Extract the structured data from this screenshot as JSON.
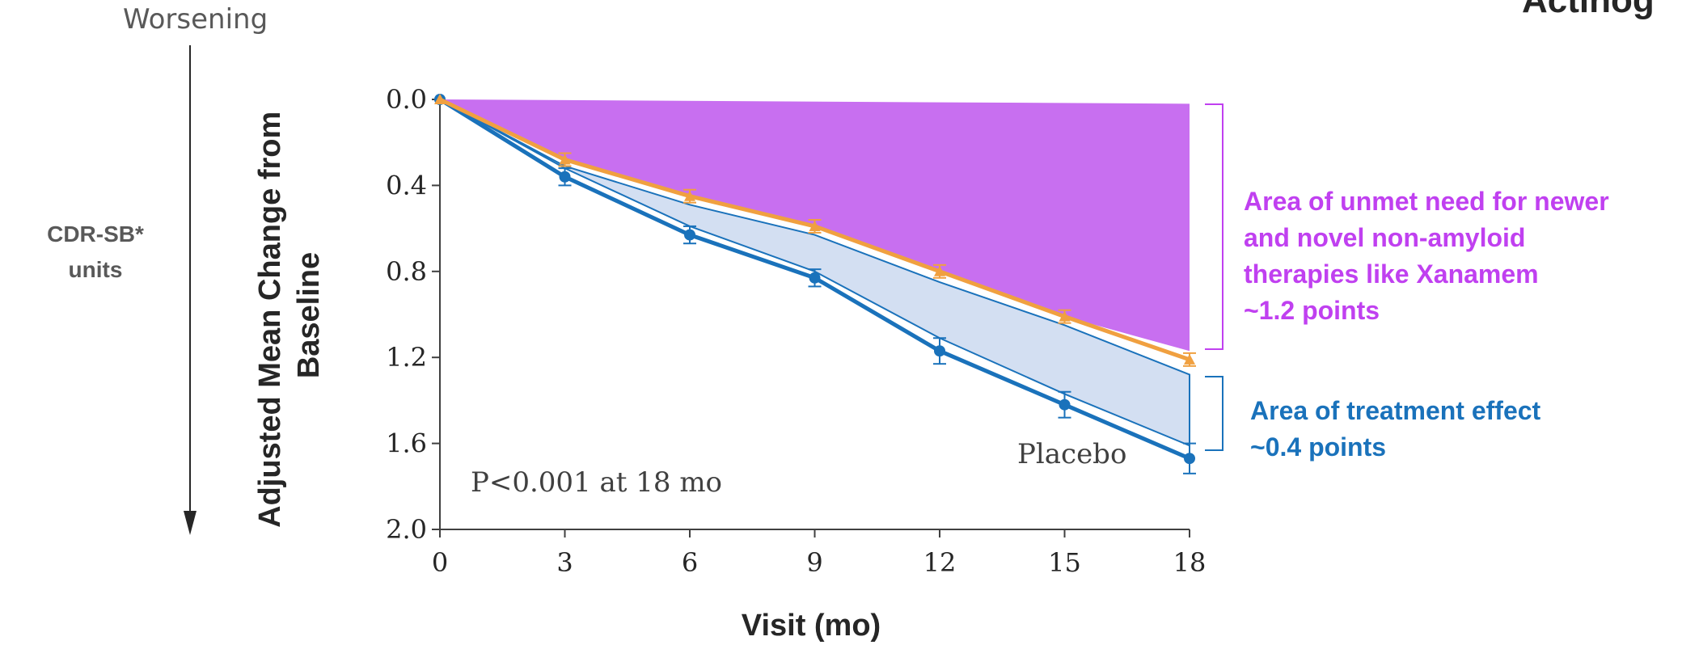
{
  "corner_text": "Actinog",
  "worsening_label": "Worsening",
  "measure_label": [
    "CDR-SB*",
    "units"
  ],
  "unmet_need_annotation": {
    "lines": [
      "Area of unmet need for newer",
      "and novel non-amyloid",
      "therapies like Xanamem",
      "~1.2 points"
    ],
    "color": "#c040f0"
  },
  "treatment_effect_annotation": {
    "lines": [
      "Area of treatment effect",
      "~0.4 points"
    ],
    "color": "#1a72bb"
  },
  "chart_data": {
    "type": "line",
    "xlabel": "Visit (mo)",
    "ylabel": "Adjusted Mean Change from Baseline",
    "x": [
      0,
      3,
      6,
      9,
      12,
      15,
      18
    ],
    "xticks": [
      "0",
      "3",
      "6",
      "9",
      "12",
      "15",
      "18"
    ],
    "yticks": [
      "0.0",
      "0.4",
      "0.8",
      "1.2",
      "1.6",
      "2.0"
    ],
    "ylim": [
      0,
      2.0
    ],
    "y_inverted": true,
    "series": [
      {
        "name": "Placebo",
        "values": [
          0,
          0.36,
          0.63,
          0.83,
          1.17,
          1.42,
          1.67
        ],
        "error_low": [
          0,
          0.4,
          0.67,
          0.87,
          1.23,
          1.48,
          1.74
        ],
        "error_high": [
          0,
          0.32,
          0.59,
          0.79,
          1.11,
          1.36,
          1.6
        ],
        "color": "#1a72bb",
        "marker": "circle"
      },
      {
        "values": [
          0,
          0.28,
          0.45,
          0.59,
          0.8,
          1.01,
          1.21
        ],
        "error_low": [
          0,
          0.31,
          0.48,
          0.62,
          0.83,
          1.04,
          1.24
        ],
        "error_high": [
          0,
          0.25,
          0.42,
          0.56,
          0.77,
          0.98,
          1.18
        ],
        "color": "#f0a040",
        "marker": "triangle"
      }
    ],
    "unmet_need_area": {
      "top": [
        0,
        0.02
      ],
      "bottom_line": [
        0,
        0.28,
        0.45,
        0.59,
        0.8,
        1.01,
        1.17
      ],
      "color": "#c86ff0"
    },
    "treatment_effect_area": {
      "top_line": [
        0,
        0.31,
        0.49,
        0.63,
        0.85,
        1.05,
        1.28
      ],
      "bottom_line": [
        0,
        0.32,
        0.59,
        0.8,
        1.11,
        1.37,
        1.61
      ],
      "color": "#d3dff2"
    },
    "annotation": "P<0.001 at 18 mo"
  }
}
